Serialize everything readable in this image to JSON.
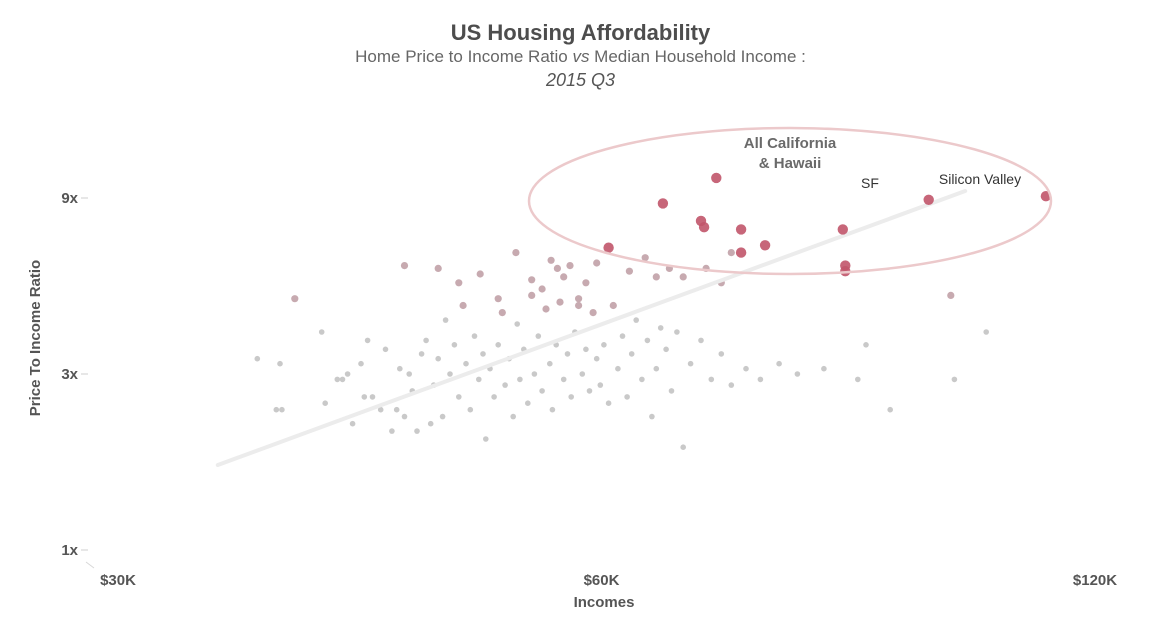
{
  "chart_data": {
    "type": "scatter",
    "title": "US Housing Affordability",
    "subtitle_prefix": "Home Price to Income Ratio ",
    "subtitle_vs": "vs",
    "subtitle_suffix": " Median Household Income :",
    "period": "2015 Q3",
    "xlabel": "Incomes",
    "ylabel": "Price To Income Ratio",
    "x_scale": "log",
    "y_scale": "log",
    "xlim": [
      30000,
      120000
    ],
    "ylim": [
      1,
      12
    ],
    "xticks": [
      {
        "value": 30000,
        "label": "$30K"
      },
      {
        "value": 60000,
        "label": "$60K"
      },
      {
        "value": 120000,
        "label": "$120K"
      }
    ],
    "yticks": [
      {
        "value": 1,
        "label": "1x"
      },
      {
        "value": 3,
        "label": "3x"
      },
      {
        "value": 9,
        "label": "9x"
      }
    ],
    "trendline": {
      "x": [
        35000,
        100000
      ],
      "y": [
        1.7,
        9.4
      ]
    },
    "annotations": {
      "group_label_line1": "All California",
      "group_label_line2": "& Hawaii",
      "sf_label": "SF",
      "silicon_valley_label": "Silicon Valley"
    },
    "highlight_color": "#c1556a",
    "base_color": "#c9c9c9",
    "ellipse_color": "#ecc9cb",
    "trend_color": "#ececec",
    "highlighted_points": [
      {
        "name": "Silicon Valley",
        "x": 112000,
        "y": 9.1
      },
      {
        "name": "SF",
        "x": 95000,
        "y": 8.9
      },
      {
        "x": 70500,
        "y": 10.2
      },
      {
        "x": 65400,
        "y": 8.7
      },
      {
        "x": 69000,
        "y": 7.8
      },
      {
        "x": 69300,
        "y": 7.5
      },
      {
        "x": 73000,
        "y": 7.4
      },
      {
        "x": 73000,
        "y": 6.4
      },
      {
        "x": 75500,
        "y": 6.7
      },
      {
        "x": 60600,
        "y": 6.6
      },
      {
        "x": 84200,
        "y": 7.4
      },
      {
        "x": 84500,
        "y": 5.9
      },
      {
        "x": 84500,
        "y": 5.7
      }
    ],
    "points": [
      {
        "x": 37000,
        "y": 3.3
      },
      {
        "x": 38000,
        "y": 2.4
      },
      {
        "x": 38300,
        "y": 2.4
      },
      {
        "x": 38200,
        "y": 3.2
      },
      {
        "x": 39000,
        "y": 4.8
      },
      {
        "x": 40500,
        "y": 3.9
      },
      {
        "x": 40700,
        "y": 2.5
      },
      {
        "x": 41400,
        "y": 2.9
      },
      {
        "x": 41700,
        "y": 2.9
      },
      {
        "x": 42000,
        "y": 3.0
      },
      {
        "x": 42300,
        "y": 2.2
      },
      {
        "x": 42800,
        "y": 3.2
      },
      {
        "x": 43000,
        "y": 2.6
      },
      {
        "x": 43200,
        "y": 3.7
      },
      {
        "x": 43500,
        "y": 2.6
      },
      {
        "x": 44000,
        "y": 2.4
      },
      {
        "x": 44300,
        "y": 3.5
      },
      {
        "x": 44700,
        "y": 2.1
      },
      {
        "x": 45000,
        "y": 2.4
      },
      {
        "x": 45200,
        "y": 3.1
      },
      {
        "x": 45500,
        "y": 2.3
      },
      {
        "x": 45800,
        "y": 3.0
      },
      {
        "x": 46000,
        "y": 2.7
      },
      {
        "x": 46300,
        "y": 2.1
      },
      {
        "x": 46600,
        "y": 3.4
      },
      {
        "x": 46900,
        "y": 3.7
      },
      {
        "x": 47200,
        "y": 2.2
      },
      {
        "x": 47400,
        "y": 2.8
      },
      {
        "x": 47700,
        "y": 3.3
      },
      {
        "x": 48000,
        "y": 2.3
      },
      {
        "x": 48200,
        "y": 4.2
      },
      {
        "x": 48500,
        "y": 3.0
      },
      {
        "x": 48800,
        "y": 3.6
      },
      {
        "x": 49100,
        "y": 2.6
      },
      {
        "x": 49400,
        "y": 4.6
      },
      {
        "x": 49600,
        "y": 3.2
      },
      {
        "x": 49900,
        "y": 2.4
      },
      {
        "x": 50200,
        "y": 3.8
      },
      {
        "x": 50500,
        "y": 2.9
      },
      {
        "x": 50800,
        "y": 3.4
      },
      {
        "x": 51000,
        "y": 2.0
      },
      {
        "x": 51300,
        "y": 3.1
      },
      {
        "x": 51600,
        "y": 2.6
      },
      {
        "x": 51900,
        "y": 3.6
      },
      {
        "x": 52200,
        "y": 4.4
      },
      {
        "x": 52400,
        "y": 2.8
      },
      {
        "x": 52700,
        "y": 3.3
      },
      {
        "x": 53000,
        "y": 2.3
      },
      {
        "x": 53300,
        "y": 4.1
      },
      {
        "x": 53500,
        "y": 2.9
      },
      {
        "x": 53800,
        "y": 3.5
      },
      {
        "x": 54100,
        "y": 2.5
      },
      {
        "x": 54400,
        "y": 4.9
      },
      {
        "x": 54600,
        "y": 3.0
      },
      {
        "x": 54900,
        "y": 3.8
      },
      {
        "x": 55200,
        "y": 2.7
      },
      {
        "x": 55500,
        "y": 4.5
      },
      {
        "x": 55800,
        "y": 3.2
      },
      {
        "x": 56000,
        "y": 2.4
      },
      {
        "x": 56300,
        "y": 3.6
      },
      {
        "x": 56600,
        "y": 4.7
      },
      {
        "x": 56900,
        "y": 2.9
      },
      {
        "x": 57200,
        "y": 3.4
      },
      {
        "x": 57500,
        "y": 2.6
      },
      {
        "x": 57800,
        "y": 3.9
      },
      {
        "x": 58100,
        "y": 4.8
      },
      {
        "x": 58400,
        "y": 3.0
      },
      {
        "x": 58700,
        "y": 3.5
      },
      {
        "x": 59000,
        "y": 2.7
      },
      {
        "x": 59300,
        "y": 4.4
      },
      {
        "x": 59600,
        "y": 3.3
      },
      {
        "x": 59900,
        "y": 2.8
      },
      {
        "x": 60200,
        "y": 3.6
      },
      {
        "x": 60600,
        "y": 2.5
      },
      {
        "x": 61000,
        "y": 4.6
      },
      {
        "x": 61400,
        "y": 3.1
      },
      {
        "x": 61800,
        "y": 3.8
      },
      {
        "x": 62200,
        "y": 2.6
      },
      {
        "x": 62600,
        "y": 3.4
      },
      {
        "x": 63000,
        "y": 4.2
      },
      {
        "x": 63500,
        "y": 2.9
      },
      {
        "x": 64000,
        "y": 3.7
      },
      {
        "x": 64400,
        "y": 2.3
      },
      {
        "x": 64800,
        "y": 3.1
      },
      {
        "x": 65200,
        "y": 4.0
      },
      {
        "x": 65700,
        "y": 3.5
      },
      {
        "x": 66200,
        "y": 2.7
      },
      {
        "x": 66700,
        "y": 3.9
      },
      {
        "x": 67300,
        "y": 1.9
      },
      {
        "x": 68000,
        "y": 3.2
      },
      {
        "x": 69000,
        "y": 3.7
      },
      {
        "x": 70000,
        "y": 2.9
      },
      {
        "x": 71000,
        "y": 3.4
      },
      {
        "x": 72000,
        "y": 2.8
      },
      {
        "x": 73500,
        "y": 3.1
      },
      {
        "x": 75000,
        "y": 2.9
      },
      {
        "x": 77000,
        "y": 3.2
      },
      {
        "x": 79000,
        "y": 3.0
      },
      {
        "x": 82000,
        "y": 3.1
      },
      {
        "x": 86000,
        "y": 2.9
      },
      {
        "x": 87000,
        "y": 3.6
      },
      {
        "x": 90000,
        "y": 2.4
      },
      {
        "x": 98000,
        "y": 4.9
      },
      {
        "x": 98500,
        "y": 2.9
      },
      {
        "x": 103000,
        "y": 3.9
      },
      {
        "x": 45500,
        "y": 5.9
      },
      {
        "x": 47700,
        "y": 5.8
      },
      {
        "x": 49100,
        "y": 5.3
      },
      {
        "x": 50600,
        "y": 5.6
      },
      {
        "x": 53200,
        "y": 6.4
      },
      {
        "x": 55900,
        "y": 6.1
      },
      {
        "x": 56400,
        "y": 5.8
      },
      {
        "x": 57400,
        "y": 5.9
      },
      {
        "x": 58700,
        "y": 5.3
      },
      {
        "x": 59600,
        "y": 6.0
      },
      {
        "x": 62400,
        "y": 5.7
      },
      {
        "x": 63800,
        "y": 6.2
      },
      {
        "x": 64800,
        "y": 5.5
      },
      {
        "x": 66000,
        "y": 5.8
      },
      {
        "x": 67300,
        "y": 5.5
      },
      {
        "x": 69500,
        "y": 5.8
      },
      {
        "x": 71000,
        "y": 5.3
      },
      {
        "x": 72000,
        "y": 6.4
      },
      {
        "x": 51900,
        "y": 4.8
      },
      {
        "x": 54400,
        "y": 5.4
      },
      {
        "x": 55200,
        "y": 5.1
      },
      {
        "x": 56900,
        "y": 5.5
      },
      {
        "x": 58100,
        "y": 4.6
      }
    ]
  }
}
